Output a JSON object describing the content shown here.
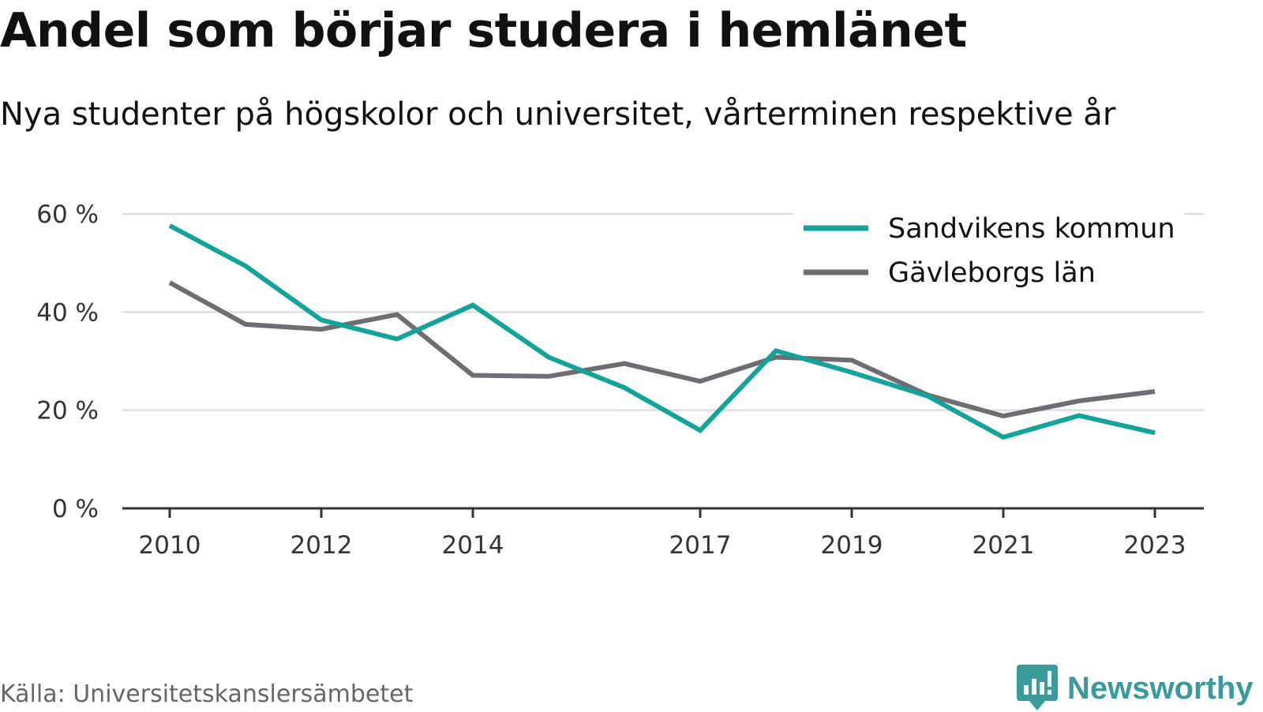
{
  "header": {
    "title": "Andel som börjar studera i hemlänet",
    "subtitle": "Nya studenter på högskolor och universitet, vårterminen respektive år"
  },
  "footer": {
    "source": "Källa: Universitetskanslersämbetet",
    "brand": "Newsworthy"
  },
  "colors": {
    "sandviken": "#13a398",
    "gavleborg": "#6e6d72",
    "grid": "#dddddd",
    "axis": "#333333",
    "brand": "#3a9b9a"
  },
  "chart_data": {
    "type": "line",
    "x": [
      2010,
      2011,
      2012,
      2013,
      2014,
      2015,
      2016,
      2017,
      2018,
      2019,
      2020,
      2021,
      2022,
      2023
    ],
    "x_tick_values": [
      2010,
      2012,
      2014,
      2017,
      2019,
      2021,
      2023
    ],
    "x_tick_labels": [
      "2010",
      "2012",
      "2014",
      "2017",
      "2019",
      "2021",
      "2023"
    ],
    "y_tick_values": [
      0,
      20,
      40,
      60
    ],
    "y_tick_labels": [
      "0 %",
      "20 %",
      "40 %",
      "60 %"
    ],
    "ylim": [
      0,
      60
    ],
    "grid": true,
    "legend_position": "top-right",
    "series": [
      {
        "name": "Sandvikens kommun",
        "color": "#13a398",
        "values": [
          57.6,
          49.4,
          38.4,
          34.5,
          41.4,
          30.8,
          24.6,
          15.9,
          32.1,
          27.7,
          22.9,
          14.5,
          18.9,
          15.4
        ]
      },
      {
        "name": "Gävleborgs län",
        "color": "#6e6d72",
        "values": [
          46.0,
          37.5,
          36.5,
          39.5,
          27.1,
          26.9,
          29.5,
          25.9,
          30.8,
          30.2,
          23.1,
          18.8,
          21.9,
          23.8
        ]
      }
    ]
  }
}
